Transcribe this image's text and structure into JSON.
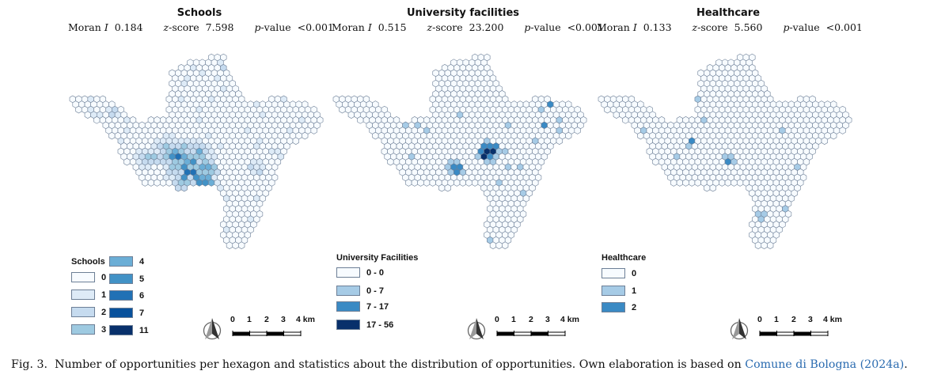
{
  "panels": [
    {
      "title": "Schools",
      "moran_label": "Moran",
      "i_label": "I",
      "moran_value": "0.184",
      "z_label": "z",
      "z_suffix": "-score",
      "z_value": "7.598",
      "p_label": "p",
      "p_suffix": "-value",
      "p_value": "<0.001",
      "legend_title": "Schools",
      "legend": [
        {
          "label": "0",
          "color": "#f7fbff"
        },
        {
          "label": "1",
          "color": "#deebf7"
        },
        {
          "label": "2",
          "color": "#c6dbef"
        },
        {
          "label": "3",
          "color": "#9ecae1"
        },
        {
          "label": "4",
          "color": "#6baed6"
        },
        {
          "label": "5",
          "color": "#4292c6"
        },
        {
          "label": "6",
          "color": "#2171b5"
        },
        {
          "label": "7",
          "color": "#08519c"
        },
        {
          "label": "11",
          "color": "#08306b"
        }
      ],
      "scale": {
        "labels": [
          "0",
          "1",
          "2",
          "3",
          "4 km"
        ]
      }
    },
    {
      "title": "University facilities",
      "moran_label": "Moran",
      "i_label": "I",
      "moran_value": "0.515",
      "z_label": "z",
      "z_suffix": "-score",
      "z_value": "23.200",
      "p_label": "p",
      "p_suffix": "-value",
      "p_value": "<0.001",
      "legend_title": "University Facilities",
      "legend": [
        {
          "label": "0 - 0",
          "color": "#f7fbff"
        },
        {
          "label": "0 - 7",
          "color": "#a6cbe6"
        },
        {
          "label": "7 - 17",
          "color": "#3a8ac4"
        },
        {
          "label": "17 - 56",
          "color": "#08306b"
        }
      ],
      "scale": {
        "labels": [
          "0",
          "1",
          "2",
          "3",
          "4 km"
        ]
      }
    },
    {
      "title": "Healthcare",
      "moran_label": "Moran",
      "i_label": "I",
      "moran_value": "0.133",
      "z_label": "z",
      "z_suffix": "-score",
      "z_value": "5.560",
      "p_label": "p",
      "p_suffix": "-value",
      "p_value": "<0.001",
      "legend_title": "Healthcare",
      "legend": [
        {
          "label": "0",
          "color": "#f7fbff"
        },
        {
          "label": "1",
          "color": "#a6cbe6"
        },
        {
          "label": "2",
          "color": "#3a8ac4"
        }
      ],
      "scale": {
        "labels": [
          "0",
          "1",
          "2",
          "3",
          "4 km"
        ]
      }
    }
  ],
  "caption": {
    "prefix": "Fig. 3.",
    "text": "Number of opportunities per hexagon and statistics about the distribution of opportunities. Own elaboration is based on",
    "link": "Comune di Bologna (2024a)",
    "suffix": "."
  },
  "north_arrow_icon": "north-arrow-icon"
}
